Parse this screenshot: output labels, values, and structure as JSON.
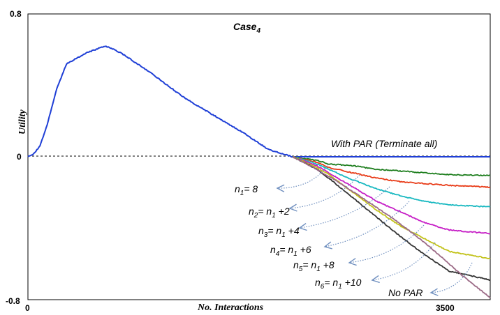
{
  "chart_data": {
    "type": "line",
    "title": "Case",
    "title_subscript": "4",
    "xlabel": "No. Interactions",
    "ylabel": "Utility",
    "xlim": [
      0,
      3840
    ],
    "ylim": [
      -0.8,
      0.8
    ],
    "x_ticks": [
      "0",
      "3500"
    ],
    "y_ticks": [
      "0.8",
      "0",
      "-0.8"
    ],
    "grid": false,
    "reference_line": {
      "y": 0,
      "style": "dashed"
    },
    "series": [
      {
        "name": "With PAR (Terminate all)",
        "color": "#1f3fd6",
        "x": [
          0,
          40,
          100,
          160,
          240,
          320,
          400,
          480,
          560,
          640,
          720,
          800,
          1000,
          1300,
          1600,
          1800,
          2000,
          2200,
          2400,
          3000,
          3500,
          3840
        ],
        "y": [
          0,
          0.01,
          0.06,
          0.18,
          0.38,
          0.52,
          0.55,
          0.58,
          0.6,
          0.62,
          0.6,
          0.57,
          0.48,
          0.33,
          0.21,
          0.13,
          0.04,
          0,
          0,
          0,
          0,
          0
        ]
      },
      {
        "name": "n1= 8",
        "color": "#1e7e1e",
        "x": [
          2200,
          2400,
          2500,
          2700,
          2900,
          3100,
          3300,
          3500,
          3840
        ],
        "y": [
          0,
          -0.02,
          -0.04,
          -0.05,
          -0.07,
          -0.08,
          -0.09,
          -0.1,
          -0.105
        ]
      },
      {
        "name": "n2= n1 +2",
        "color": "#e83b17",
        "x": [
          2200,
          2400,
          2500,
          2700,
          2900,
          3100,
          3300,
          3500,
          3840
        ],
        "y": [
          0,
          -0.03,
          -0.06,
          -0.09,
          -0.12,
          -0.14,
          -0.15,
          -0.16,
          -0.17
        ]
      },
      {
        "name": "n3= n1 +4",
        "color": "#17b8c0",
        "x": [
          2200,
          2400,
          2500,
          2700,
          2900,
          3100,
          3300,
          3500,
          3840
        ],
        "y": [
          0,
          -0.04,
          -0.07,
          -0.13,
          -0.18,
          -0.22,
          -0.25,
          -0.27,
          -0.28
        ]
      },
      {
        "name": "n4= n1 +6",
        "color": "#c61ec6",
        "x": [
          2200,
          2400,
          2500,
          2700,
          2900,
          3100,
          3300,
          3500,
          3840
        ],
        "y": [
          0,
          -0.05,
          -0.09,
          -0.17,
          -0.25,
          -0.31,
          -0.37,
          -0.41,
          -0.43
        ]
      },
      {
        "name": "n5= n1 +8",
        "color": "#c2c21a",
        "x": [
          2200,
          2400,
          2500,
          2700,
          2900,
          3100,
          3300,
          3500,
          3840
        ],
        "y": [
          0,
          -0.06,
          -0.1,
          -0.2,
          -0.3,
          -0.39,
          -0.46,
          -0.53,
          -0.57
        ]
      },
      {
        "name": "n6= n1 +10",
        "color": "#333333",
        "x": [
          2200,
          2400,
          2500,
          2700,
          2900,
          3100,
          3300,
          3500,
          3840
        ],
        "y": [
          0,
          -0.07,
          -0.12,
          -0.23,
          -0.34,
          -0.45,
          -0.55,
          -0.64,
          -0.69
        ]
      },
      {
        "name": "No PAR",
        "color": "#9b6a86",
        "x": [
          2200,
          2400,
          2600,
          2800,
          3000,
          3200,
          3400,
          3600,
          3840
        ],
        "y": [
          0,
          -0.07,
          -0.15,
          -0.24,
          -0.33,
          -0.43,
          -0.54,
          -0.66,
          -0.79
        ]
      }
    ],
    "annotations": [
      {
        "label_parts": [
          {
            "t": "n"
          },
          {
            "t": "1",
            "sub": true
          },
          {
            "t": "= 8"
          }
        ]
      },
      {
        "label_parts": [
          {
            "t": "n"
          },
          {
            "t": "2",
            "sub": true
          },
          {
            "t": "= n"
          },
          {
            "t": "1",
            "sub": true
          },
          {
            "t": " +2"
          }
        ]
      },
      {
        "label_parts": [
          {
            "t": "n"
          },
          {
            "t": "3",
            "sub": true
          },
          {
            "t": "= n"
          },
          {
            "t": "1",
            "sub": true
          },
          {
            "t": " +4"
          }
        ]
      },
      {
        "label_parts": [
          {
            "t": "n"
          },
          {
            "t": "4",
            "sub": true
          },
          {
            "t": "= n"
          },
          {
            "t": "1",
            "sub": true
          },
          {
            "t": " +6"
          }
        ]
      },
      {
        "label_parts": [
          {
            "t": "n"
          },
          {
            "t": "5",
            "sub": true
          },
          {
            "t": "= n"
          },
          {
            "t": "1",
            "sub": true
          },
          {
            "t": " +8"
          }
        ]
      },
      {
        "label_parts": [
          {
            "t": "n"
          },
          {
            "t": "6",
            "sub": true
          },
          {
            "t": "= n"
          },
          {
            "t": "1",
            "sub": true
          },
          {
            "t": " +10"
          }
        ]
      },
      {
        "label_parts": [
          {
            "t": "No PAR"
          }
        ]
      }
    ],
    "inline_label": "With PAR (Terminate all)",
    "arrow_color": "#6f8fbf"
  }
}
